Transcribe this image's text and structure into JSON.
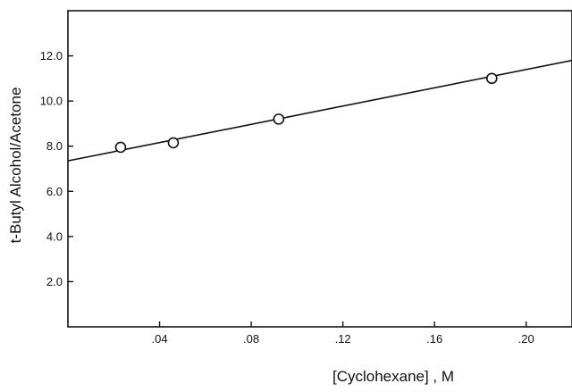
{
  "chart_data": {
    "type": "scatter",
    "title": "",
    "xlabel": "[Cyclohexane] , M",
    "ylabel": "t-Butyl Alcohol/Acetone",
    "xlim": [
      0,
      0.22
    ],
    "ylim": [
      0,
      14
    ],
    "x_ticks": [
      {
        "value": 0.04,
        "label": ".04"
      },
      {
        "value": 0.08,
        "label": ".08"
      },
      {
        "value": 0.12,
        "label": ".12"
      },
      {
        "value": 0.16,
        "label": ".16"
      },
      {
        "value": 0.2,
        "label": ".20"
      }
    ],
    "y_ticks": [
      {
        "value": 2,
        "label": "2.0"
      },
      {
        "value": 4,
        "label": "4.0"
      },
      {
        "value": 6,
        "label": "6.0"
      },
      {
        "value": 8,
        "label": "8.0"
      },
      {
        "value": 10,
        "label": "10.0"
      },
      {
        "value": 12,
        "label": "12.0"
      }
    ],
    "grid": false,
    "points": [
      {
        "x": 0.023,
        "y": 7.95
      },
      {
        "x": 0.046,
        "y": 8.15
      },
      {
        "x": 0.092,
        "y": 9.2
      },
      {
        "x": 0.185,
        "y": 11.0
      }
    ],
    "fit_line": {
      "x": [
        0,
        0.22
      ],
      "y": [
        7.35,
        11.8
      ]
    }
  }
}
